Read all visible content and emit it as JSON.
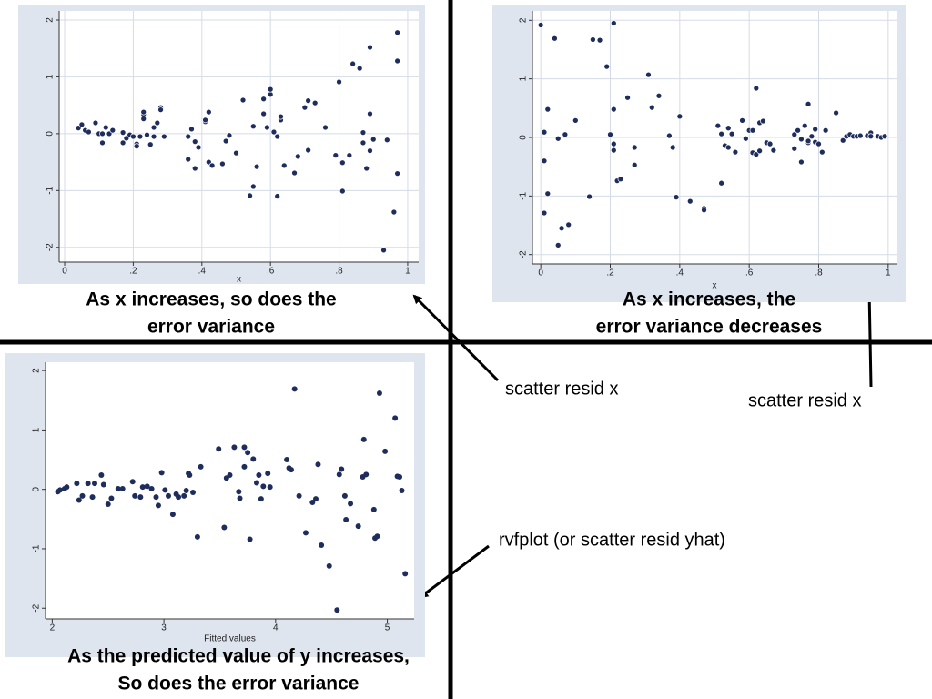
{
  "chart_data": [
    {
      "type": "scatter",
      "x_label": "x",
      "color": "#1f2d5c",
      "xlim": [
        -0.016,
        1.032
      ],
      "ylim": [
        -2.26,
        2.16
      ],
      "xticks": [
        0,
        {
          "value": 0.2,
          "label": ".2"
        },
        {
          "value": 0.4,
          "label": ".4"
        },
        {
          "value": 0.6,
          "label": ".6"
        },
        {
          "value": 0.8,
          "label": ".8"
        },
        1
      ],
      "yticks": [
        -2,
        -1,
        0,
        1,
        2
      ],
      "grid": true,
      "x": [
        0.04,
        0.05,
        0.06,
        0.07,
        0.09,
        0.1,
        0.11,
        0.11,
        0.12,
        0.13,
        0.14,
        0.17,
        0.17,
        0.18,
        0.19,
        0.2,
        0.21,
        0.21,
        0.22,
        0.23,
        0.23,
        0.23,
        0.24,
        0.25,
        0.26,
        0.26,
        0.27,
        0.28,
        0.28,
        0.29,
        0.36,
        0.36,
        0.37,
        0.38,
        0.38,
        0.39,
        0.41,
        0.41,
        0.42,
        0.43,
        0.42,
        0.46,
        0.47,
        0.48,
        0.5,
        0.52,
        0.54,
        0.55,
        0.55,
        0.56,
        0.58,
        0.58,
        0.59,
        0.6,
        0.6,
        0.61,
        0.62,
        0.62,
        0.63,
        0.63,
        0.64,
        0.67,
        0.68,
        0.7,
        0.71,
        0.71,
        0.73,
        0.76,
        0.79,
        0.8,
        0.81,
        0.81,
        0.83,
        0.84,
        0.86,
        0.87,
        0.87,
        0.88,
        0.89,
        0.89,
        0.89,
        0.9,
        0.93,
        0.94,
        0.97,
        0.97,
        0.97,
        0.96
      ],
      "values": [
        0.1,
        0.16,
        0.06,
        0.03,
        0.19,
        0,
        0,
        -0.16,
        0.11,
        0,
        0.06,
        0.02,
        -0.16,
        -0.08,
        -0.02,
        -0.05,
        -0.18,
        -0.22,
        -0.05,
        0.26,
        0.34,
        0.38,
        -0.02,
        -0.19,
        0.11,
        -0.05,
        0.19,
        0.46,
        0.42,
        -0.05,
        -0.45,
        -0.05,
        0.08,
        -0.61,
        -0.14,
        -0.24,
        0.21,
        0.24,
        -0.5,
        -0.56,
        0.38,
        -0.53,
        -0.13,
        -0.03,
        -0.34,
        0.59,
        -1.09,
        0.13,
        -0.93,
        -0.58,
        0.35,
        0.61,
        0.11,
        0.69,
        0.78,
        0.03,
        -1.1,
        -0.05,
        0.24,
        0.3,
        -0.56,
        -0.69,
        -0.4,
        0.46,
        -0.29,
        0.58,
        0.54,
        0.11,
        -0.38,
        0.91,
        -0.51,
        -1.01,
        -0.38,
        1.23,
        1.15,
        -0.16,
        0.02,
        -0.61,
        -0.3,
        0.35,
        1.52,
        -0.1,
        -2.05,
        -0.11,
        -0.7,
        1.78,
        1.28,
        -1.38
      ],
      "caption": [
        "As x increases, so does the",
        "error variance"
      ]
    },
    {
      "type": "scatter",
      "x_label": "x",
      "color": "#1f2d5c",
      "xlim": [
        -0.024,
        1.024
      ],
      "ylim": [
        -2.16,
        2.16
      ],
      "xticks": [
        0,
        {
          "value": 0.2,
          "label": ".2"
        },
        {
          "value": 0.4,
          "label": ".4"
        },
        {
          "value": 0.6,
          "label": ".6"
        },
        {
          "value": 0.8,
          "label": ".8"
        },
        1
      ],
      "yticks": [
        -2,
        -1,
        0,
        1,
        2
      ],
      "grid": true,
      "x": [
        0.0,
        0.01,
        0.01,
        0.01,
        0.02,
        0.02,
        0.04,
        0.05,
        0.05,
        0.06,
        0.07,
        0.08,
        0.1,
        0.14,
        0.15,
        0.17,
        0.19,
        0.2,
        0.21,
        0.21,
        0.21,
        0.21,
        0.22,
        0.23,
        0.25,
        0.27,
        0.27,
        0.31,
        0.32,
        0.34,
        0.37,
        0.38,
        0.4,
        0.39,
        0.43,
        0.47,
        0.47,
        0.51,
        0.52,
        0.52,
        0.53,
        0.54,
        0.54,
        0.55,
        0.56,
        0.58,
        0.59,
        0.6,
        0.61,
        0.61,
        0.62,
        0.62,
        0.63,
        0.63,
        0.64,
        0.65,
        0.66,
        0.67,
        0.73,
        0.73,
        0.74,
        0.75,
        0.75,
        0.76,
        0.77,
        0.77,
        0.77,
        0.78,
        0.79,
        0.79,
        0.8,
        0.81,
        0.82,
        0.85,
        0.87,
        0.88,
        0.89,
        0.9,
        0.91,
        0.92,
        0.94,
        0.95,
        0.95,
        0.97,
        0.98,
        0.99
      ],
      "values": [
        1.92,
        0.09,
        -0.4,
        -1.29,
        -0.96,
        0.48,
        1.69,
        -0.02,
        -1.84,
        -1.55,
        0.05,
        -1.49,
        0.29,
        -1.01,
        1.67,
        1.66,
        1.21,
        0.05,
        0.48,
        1.95,
        -0.11,
        -0.22,
        -0.74,
        -0.71,
        0.68,
        -0.17,
        -0.47,
        1.07,
        0.51,
        0.71,
        0.03,
        -0.17,
        0.36,
        -1.02,
        -1.09,
        -1.21,
        -1.24,
        0.2,
        -0.78,
        0.06,
        -0.14,
        0.16,
        -0.17,
        0.06,
        -0.25,
        0.29,
        -0.02,
        0.12,
        0.12,
        -0.26,
        0.84,
        -0.29,
        -0.23,
        0.25,
        0.28,
        -0.09,
        -0.11,
        -0.22,
        0.05,
        -0.19,
        0.12,
        -0.03,
        -0.42,
        0.2,
        -0.09,
        0.57,
        -0.06,
        0.02,
        0.14,
        -0.08,
        -0.11,
        -0.25,
        0.12,
        0.42,
        -0.05,
        0.02,
        0.05,
        0.02,
        0.02,
        0.03,
        0.03,
        0.08,
        0.02,
        0.02,
        0,
        0.02
      ],
      "caption": [
        "As x increases, the",
        "error variance decreases"
      ]
    },
    {
      "type": "scatter",
      "x_label": "Fitted values",
      "color": "#1f2d5c",
      "xlim": [
        1.94,
        5.24
      ],
      "ylim": [
        -2.18,
        2.14
      ],
      "xticks": [
        2,
        3,
        4,
        5
      ],
      "yticks": [
        -2,
        -1,
        0,
        1,
        2
      ],
      "grid": false,
      "x": [
        2.05,
        2.07,
        2.11,
        2.13,
        2.22,
        2.24,
        2.27,
        2.32,
        2.36,
        2.38,
        2.44,
        2.46,
        2.5,
        2.53,
        2.59,
        2.63,
        2.72,
        2.74,
        2.79,
        2.81,
        2.85,
        2.89,
        2.93,
        2.95,
        2.98,
        3.01,
        3.04,
        3.08,
        3.11,
        3.13,
        3.18,
        3.2,
        3.22,
        3.23,
        3.26,
        3.3,
        3.33,
        3.49,
        3.54,
        3.56,
        3.59,
        3.63,
        3.67,
        3.68,
        3.72,
        3.72,
        3.75,
        3.77,
        3.8,
        3.83,
        3.85,
        3.87,
        3.89,
        3.93,
        3.95,
        4.1,
        4.12,
        4.14,
        4.17,
        4.21,
        4.27,
        4.33,
        4.36,
        4.38,
        4.41,
        4.48,
        4.55,
        4.57,
        4.59,
        4.62,
        4.63,
        4.67,
        4.74,
        4.78,
        4.79,
        4.81,
        4.88,
        4.89,
        4.91,
        4.93,
        4.98,
        5.07,
        5.09,
        5.11,
        5.13,
        5.16
      ],
      "values": [
        -0.04,
        -0.01,
        0.01,
        0.04,
        0.1,
        -0.18,
        -0.11,
        0.1,
        -0.13,
        0.1,
        0.24,
        0.08,
        -0.25,
        -0.15,
        0.01,
        0.01,
        0.13,
        -0.11,
        -0.13,
        0.04,
        0.05,
        0.01,
        -0.13,
        -0.27,
        0.28,
        -0.01,
        -0.11,
        -0.42,
        -0.08,
        -0.13,
        -0.11,
        -0.02,
        0.27,
        0.24,
        -0.05,
        -0.8,
        0.38,
        0.68,
        -0.64,
        0.19,
        0.24,
        0.71,
        -0.04,
        -0.15,
        0.38,
        0.71,
        0.62,
        -0.84,
        0.51,
        0.11,
        0.24,
        -0.16,
        0.05,
        0.27,
        0.04,
        0.5,
        0.36,
        0.33,
        1.69,
        -0.11,
        -0.73,
        -0.22,
        -0.16,
        0.42,
        -0.94,
        -1.29,
        -2.03,
        0.25,
        0.34,
        -0.11,
        -0.51,
        -0.24,
        -0.62,
        0.21,
        0.84,
        0.25,
        -0.34,
        -0.82,
        -0.79,
        1.62,
        0.64,
        1.2,
        0.22,
        0.21,
        -0.02,
        -1.42
      ],
      "caption": [
        "As the predicted value of y increases,",
        "So does the error variance"
      ]
    }
  ],
  "annotations": [
    "scatter resid x",
    "scatter resid x",
    "rvfplot (or scatter resid yhat)"
  ]
}
